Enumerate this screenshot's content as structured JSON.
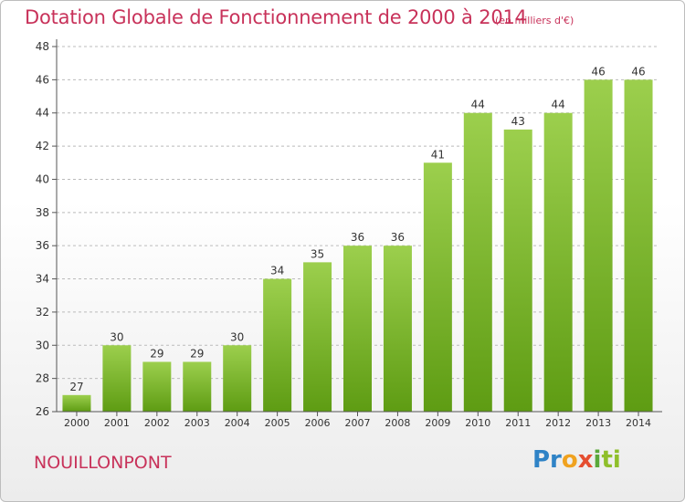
{
  "header": {
    "title": "Dotation Globale de Fonctionnement de 2000 à 2014",
    "subtitle": "(en milliers d'€)"
  },
  "footer": {
    "commune": "NOUILLONPONT",
    "logo_parts": [
      "Pr",
      "o",
      "x",
      "i",
      "ti"
    ]
  },
  "colors": {
    "title": "#c8325a",
    "bar_top": "#9ccf4d",
    "bar_bottom": "#5e9c13",
    "axis": "#555555",
    "grid": "#bbbbbb"
  },
  "chart_data": {
    "type": "bar",
    "title": "Dotation Globale de Fonctionnement de 2000 à 2014",
    "subtitle": "(en milliers d'€)",
    "categories": [
      "2000",
      "2001",
      "2002",
      "2003",
      "2004",
      "2005",
      "2006",
      "2007",
      "2008",
      "2009",
      "2010",
      "2011",
      "2012",
      "2013",
      "2014"
    ],
    "values": [
      27,
      30,
      29,
      29,
      30,
      34,
      35,
      36,
      36,
      41,
      44,
      43,
      44,
      46,
      46
    ],
    "ylim": [
      26,
      48
    ],
    "yticks": [
      26,
      28,
      30,
      32,
      34,
      36,
      38,
      40,
      42,
      44,
      46,
      48
    ],
    "grid": "horizontal-dashed",
    "legend": "none"
  }
}
